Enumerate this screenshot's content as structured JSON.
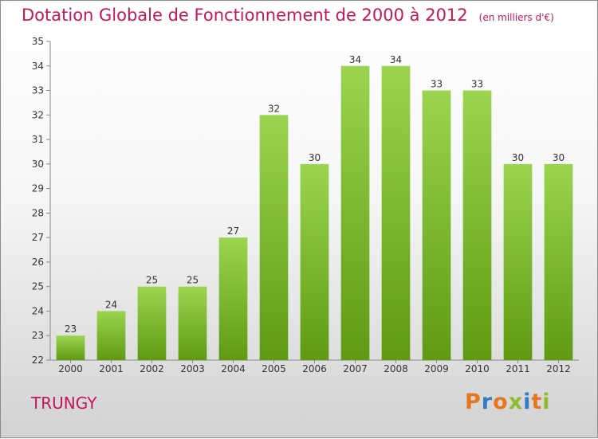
{
  "title": "Dotation Globale de Fonctionnement de 2000 à 2012",
  "unit": "(en milliers d'€)",
  "commune": "TRUNGY",
  "logo": {
    "text": "Proxiti",
    "letters": [
      "P",
      "r",
      "o",
      "x",
      "i",
      "t",
      "i"
    ],
    "colors": [
      "#e8761c",
      "#2d7fc1",
      "#e8761c",
      "#8dbb2c",
      "#2d7fc1",
      "#e8761c",
      "#8dbb2c"
    ]
  },
  "colors": {
    "bar_top": "#9bd550",
    "bar_bottom": "#5f9a12",
    "accent": "#c2185b"
  },
  "chart_data": {
    "type": "bar",
    "categories": [
      "2000",
      "2001",
      "2002",
      "2003",
      "2004",
      "2005",
      "2006",
      "2007",
      "2008",
      "2009",
      "2010",
      "2011",
      "2012"
    ],
    "values": [
      23,
      24,
      25,
      25,
      27,
      32,
      30,
      34,
      34,
      33,
      33,
      30,
      30
    ],
    "ylim": [
      22,
      35
    ],
    "yticks": [
      22,
      23,
      24,
      25,
      26,
      27,
      28,
      29,
      30,
      31,
      32,
      33,
      34,
      35
    ],
    "grid": false,
    "title": "Dotation Globale de Fonctionnement de 2000 à 2012",
    "xlabel": "",
    "ylabel": ""
  }
}
